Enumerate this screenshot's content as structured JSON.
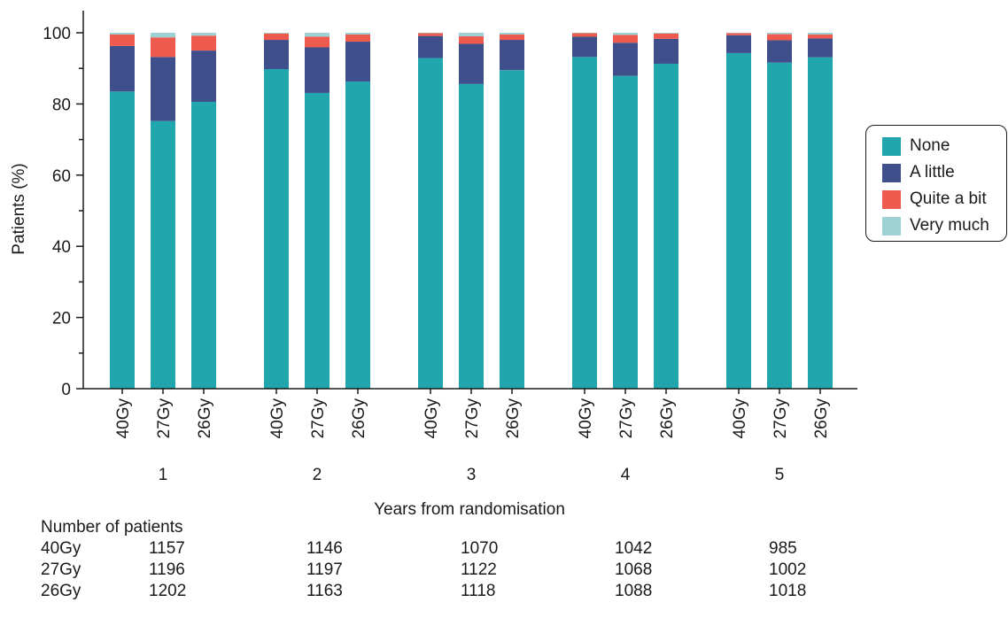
{
  "chart_data": {
    "type": "bar",
    "stacked": true,
    "ylabel": "Patients (%)",
    "xlabel": "Years from randomisation",
    "ylim": [
      0,
      100
    ],
    "yticks": [
      0,
      20,
      40,
      60,
      80,
      100
    ],
    "group_labels": [
      "1",
      "2",
      "3",
      "4",
      "5"
    ],
    "bar_labels": [
      "40Gy",
      "27Gy",
      "26Gy"
    ],
    "legend_position": "right",
    "series": [
      {
        "name": "None",
        "color": "#22a6ad",
        "values": [
          83.5,
          75.2,
          80.6,
          89.8,
          83.1,
          86.3,
          92.9,
          85.6,
          89.5,
          93.2,
          87.9,
          91.3,
          94.3,
          91.6,
          93.1
        ]
      },
      {
        "name": "A little",
        "color": "#3f4f8c",
        "values": [
          12.8,
          18.0,
          14.4,
          8.2,
          12.8,
          11.2,
          6.2,
          11.3,
          8.5,
          5.7,
          9.3,
          7.0,
          5.0,
          6.3,
          5.3
        ]
      },
      {
        "name": "Quite a bit",
        "color": "#ee5a4e",
        "values": [
          3.2,
          5.5,
          4.2,
          1.8,
          3.0,
          2.0,
          0.8,
          2.1,
          1.5,
          1.0,
          2.2,
          1.5,
          0.6,
          1.7,
          1.1
        ]
      },
      {
        "name": "Very much",
        "color": "#9dd1d3",
        "values": [
          0.5,
          1.3,
          0.8,
          0.2,
          1.1,
          0.5,
          0.1,
          1.0,
          0.5,
          0.1,
          0.6,
          0.2,
          0.1,
          0.4,
          0.5
        ]
      }
    ]
  },
  "patients_table": {
    "title": "Number of patients",
    "rows": [
      {
        "label": "40Gy",
        "values": [
          "1157",
          "1146",
          "1070",
          "1042",
          "985"
        ]
      },
      {
        "label": "27Gy",
        "values": [
          "1196",
          "1197",
          "1122",
          "1068",
          "1002"
        ]
      },
      {
        "label": "26Gy",
        "values": [
          "1202",
          "1163",
          "1118",
          "1088",
          "1018"
        ]
      }
    ]
  }
}
